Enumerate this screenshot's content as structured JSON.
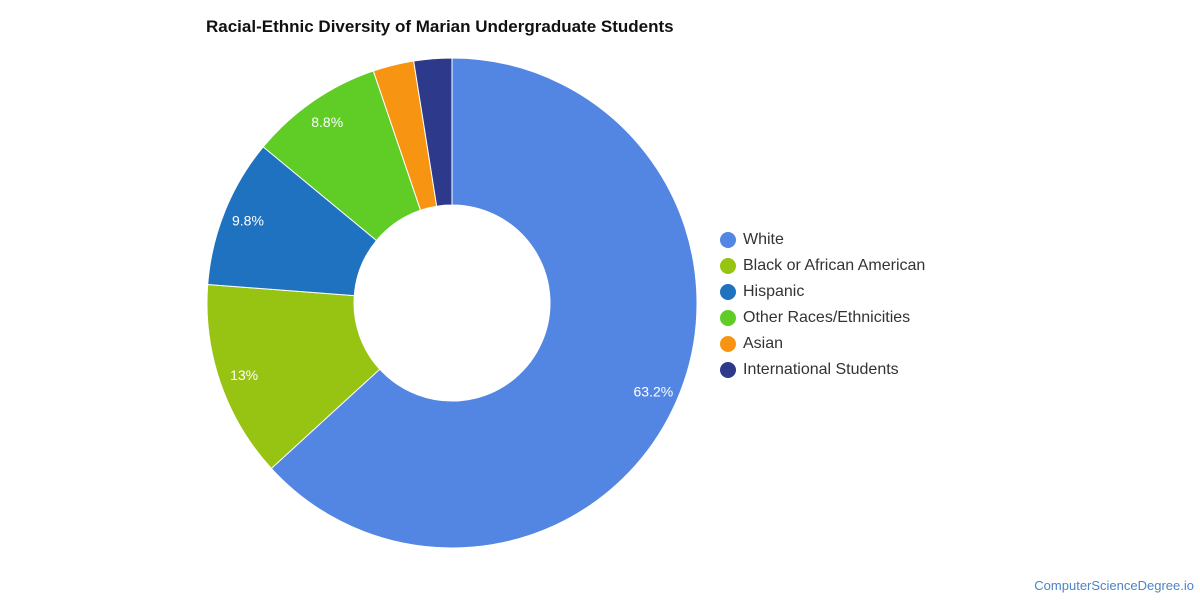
{
  "chart_data": {
    "type": "pie",
    "variant": "donut",
    "title": "Racial-Ethnic Diversity of Marian Undergraduate Students",
    "legend_position": "right",
    "slices": [
      {
        "label": "White",
        "value": 63.2,
        "display": "63.2%",
        "color": "#5385e2"
      },
      {
        "label": "Black or African American",
        "value": 13,
        "display": "13%",
        "color": "#97c312"
      },
      {
        "label": "Hispanic",
        "value": 9.8,
        "display": "9.8%",
        "color": "#1f72bf"
      },
      {
        "label": "Other Races/Ethnicities",
        "value": 8.8,
        "display": "8.8%",
        "color": "#60cc26"
      },
      {
        "label": "Asian",
        "value": 2.7,
        "display": "",
        "color": "#f79412"
      },
      {
        "label": "International Students",
        "value": 2.5,
        "display": "",
        "color": "#2d3a8c"
      }
    ]
  },
  "watermark": "ComputerScienceDegree.io"
}
